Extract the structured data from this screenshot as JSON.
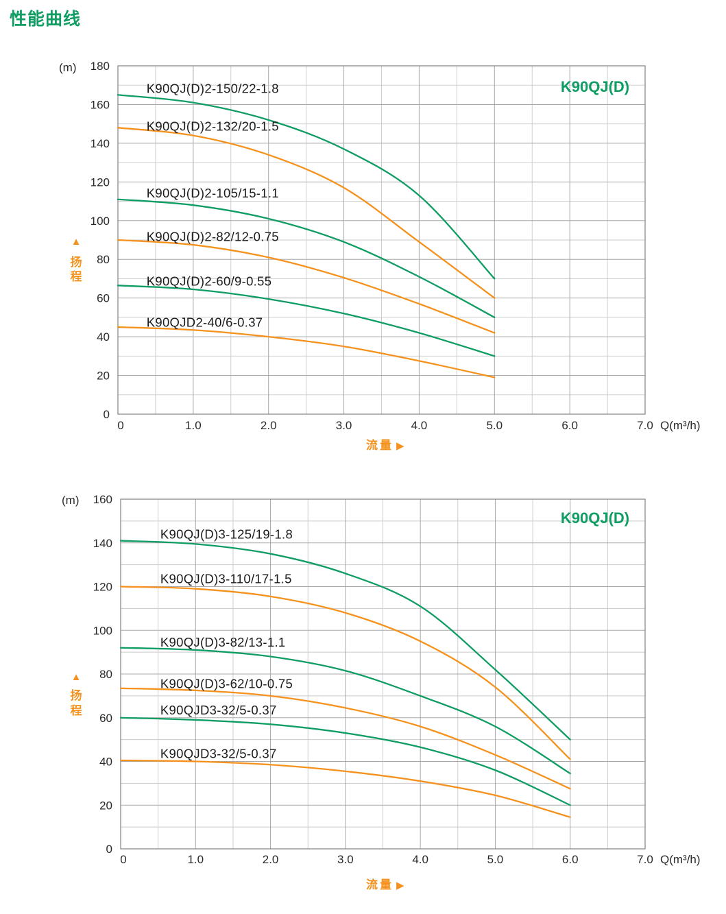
{
  "page": {
    "heading": "性能曲线",
    "heading_color": "#0f9d63"
  },
  "colors": {
    "green": "#0f9d63",
    "orange": "#f5921e",
    "grid_minor": "#c9c9c9",
    "grid_major": "#a8a8a8",
    "axis_border": "#8a8a8a",
    "text": "#2a2a2a",
    "label_text": "#1c1c1c"
  },
  "chart_data": [
    {
      "type": "line",
      "title": "K90QJ(D)",
      "unit_label": "(m)",
      "flow_label": "流量",
      "flow_arrow": "▶",
      "head_label_chars": [
        "扬",
        "程"
      ],
      "head_arrow": "▲",
      "x_axis": {
        "label": "Q(m³/h)",
        "min": 0,
        "max": 7,
        "major_step": 1,
        "minor_step": 0.5,
        "tick_labels": [
          "0",
          "1.0",
          "2.0",
          "3.0",
          "4.0",
          "5.0",
          "6.0",
          "7.0"
        ]
      },
      "y_axis": {
        "min": 0,
        "max": 180,
        "major_step": 20,
        "minor_step": 10
      },
      "grid": true,
      "series": [
        {
          "name": "K90QJ(D)2-150/22-1.8",
          "color": "#0f9d63",
          "points": [
            [
              0,
              165
            ],
            [
              1,
              161
            ],
            [
              2,
              152
            ],
            [
              3,
              137
            ],
            [
              4,
              113
            ],
            [
              5,
              70
            ]
          ],
          "label_at": [
            0.38,
            166
          ]
        },
        {
          "name": "K90QJ(D)2-132/20-1.5",
          "color": "#f5921e",
          "points": [
            [
              0,
              148
            ],
            [
              1,
              144
            ],
            [
              2,
              134
            ],
            [
              3,
              117
            ],
            [
              4,
              89
            ],
            [
              5,
              60
            ]
          ],
          "label_at": [
            0.38,
            146.5
          ]
        },
        {
          "name": "K90QJ(D)2-105/15-1.1",
          "color": "#0f9d63",
          "points": [
            [
              0,
              111
            ],
            [
              1,
              108
            ],
            [
              2,
              101
            ],
            [
              3,
              89
            ],
            [
              4,
              71
            ],
            [
              5,
              50
            ]
          ],
          "label_at": [
            0.38,
            112
          ]
        },
        {
          "name": "K90QJ(D)2-82/12-0.75",
          "color": "#f5921e",
          "points": [
            [
              0,
              90
            ],
            [
              1,
              87.5
            ],
            [
              2,
              81
            ],
            [
              3,
              70.5
            ],
            [
              4,
              57
            ],
            [
              5,
              42
            ]
          ],
          "label_at": [
            0.38,
            89.5
          ]
        },
        {
          "name": "K90QJ(D)2-60/9-0.55",
          "color": "#0f9d63",
          "points": [
            [
              0,
              66.5
            ],
            [
              1,
              64.5
            ],
            [
              2,
              59.5
            ],
            [
              3,
              52
            ],
            [
              4,
              42
            ],
            [
              5,
              30
            ]
          ],
          "label_at": [
            0.38,
            66.5
          ]
        },
        {
          "name": "K90QJD2-40/6-0.37",
          "color": "#f5921e",
          "points": [
            [
              0,
              45
            ],
            [
              1,
              43.5
            ],
            [
              2,
              40
            ],
            [
              3,
              35
            ],
            [
              4,
              27.5
            ],
            [
              5,
              19
            ]
          ],
          "label_at": [
            0.38,
            45.2
          ]
        }
      ]
    },
    {
      "type": "line",
      "title": "K90QJ(D)",
      "unit_label": "(m)",
      "flow_label": "流量",
      "flow_arrow": "▶",
      "head_label_chars": [
        "扬",
        "程"
      ],
      "head_arrow": "▲",
      "x_axis": {
        "label": "Q(m³/h)",
        "min": 0,
        "max": 7,
        "major_step": 1,
        "minor_step": 0.5,
        "tick_labels": [
          "0",
          "1.0",
          "2.0",
          "3.0",
          "4.0",
          "5.0",
          "6.0",
          "7.0"
        ]
      },
      "y_axis": {
        "min": 0,
        "max": 160,
        "major_step": 20,
        "minor_step": 10
      },
      "grid": true,
      "series": [
        {
          "name": "K90QJ(D)3-125/19-1.8",
          "color": "#0f9d63",
          "points": [
            [
              0,
              141
            ],
            [
              1,
              139.5
            ],
            [
              2,
              135
            ],
            [
              3,
              126
            ],
            [
              4,
              111
            ],
            [
              5,
              82
            ],
            [
              6,
              50
            ]
          ],
          "label_at": [
            0.53,
            142
          ]
        },
        {
          "name": "K90QJ(D)3-110/17-1.5",
          "color": "#f5921e",
          "points": [
            [
              0,
              120
            ],
            [
              1,
              119
            ],
            [
              2,
              115.5
            ],
            [
              3,
              108
            ],
            [
              4,
              95
            ],
            [
              5,
              74
            ],
            [
              6,
              41
            ]
          ],
          "label_at": [
            0.53,
            121.5
          ]
        },
        {
          "name": "K90QJ(D)3-82/13-1.1",
          "color": "#0f9d63",
          "points": [
            [
              0,
              92
            ],
            [
              1,
              91
            ],
            [
              2,
              88
            ],
            [
              3,
              81.5
            ],
            [
              4,
              70
            ],
            [
              5,
              56
            ],
            [
              6,
              34.5
            ]
          ],
          "label_at": [
            0.53,
            92.5
          ]
        },
        {
          "name": "K90QJ(D)3-62/10-0.75",
          "color": "#f5921e",
          "points": [
            [
              0,
              73.5
            ],
            [
              1,
              72.5
            ],
            [
              2,
              70
            ],
            [
              3,
              64.5
            ],
            [
              4,
              56
            ],
            [
              5,
              43
            ],
            [
              6,
              27.5
            ]
          ],
          "label_at": [
            0.53,
            73.5
          ]
        },
        {
          "name": "K90QJD3-32/5-0.37",
          "color": "#0f9d63",
          "points": [
            [
              0,
              60
            ],
            [
              1,
              59
            ],
            [
              2,
              57
            ],
            [
              3,
              53
            ],
            [
              4,
              46.5
            ],
            [
              5,
              36
            ],
            [
              6,
              20
            ]
          ],
          "label_at": [
            0.53,
            61.5
          ]
        },
        {
          "name": "K90QJD3-32/5-0.37",
          "color": "#f5921e",
          "points": [
            [
              0,
              40.5
            ],
            [
              1,
              40
            ],
            [
              2,
              38.5
            ],
            [
              3,
              35.5
            ],
            [
              4,
              31
            ],
            [
              5,
              24.5
            ],
            [
              6,
              14.5
            ]
          ],
          "label_at": [
            0.53,
            41.5
          ]
        }
      ]
    }
  ]
}
